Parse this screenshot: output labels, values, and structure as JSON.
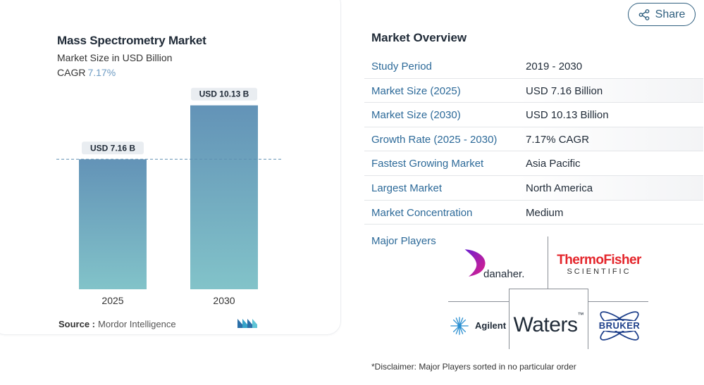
{
  "chart": {
    "title": "Mass Spectrometry Market",
    "subtitle": "Market Size in USD Billion",
    "cagr_label": "CAGR",
    "cagr_value": "7.17%",
    "source_label": "Source :",
    "source_value": "Mordor Intelligence",
    "logo_icon": "mordor-intelligence-logo-icon"
  },
  "chart_data": {
    "type": "bar",
    "categories": [
      "2025",
      "2030"
    ],
    "values": [
      7.16,
      10.13
    ],
    "data_labels": [
      "USD 7.16 B",
      "USD 10.13 B"
    ],
    "reference_line_value": 7.16,
    "ylim": [
      0,
      10.7
    ],
    "grid": false,
    "bar_gradient": [
      "#6393b7",
      "#82c3c9"
    ]
  },
  "share": {
    "label": "Share",
    "icon": "share-icon"
  },
  "overview": {
    "title": "Market Overview",
    "rows": [
      {
        "key": "Study Period",
        "value": "2019 - 2030"
      },
      {
        "key": "Market Size (2025)",
        "value": "USD 7.16 Billion"
      },
      {
        "key": "Market Size (2030)",
        "value": "USD 10.13 Billion"
      },
      {
        "key": "Growth Rate (2025 - 2030)",
        "value": "7.17% CAGR"
      },
      {
        "key": "Fastest Growing Market",
        "value": "Asia Pacific"
      },
      {
        "key": "Largest Market",
        "value": "North America"
      },
      {
        "key": "Market Concentration",
        "value": "Medium"
      }
    ],
    "major_players_label": "Major Players",
    "players": {
      "danaher": "danaher.",
      "thermo_top": "ThermoFisher",
      "thermo_bottom": "SCIENTIFIC",
      "agilent": "Agilent",
      "waters": "Waters",
      "bruker": "BRUKER"
    },
    "disclaimer": "*Disclaimer: Major Players sorted in no particular order"
  },
  "colors": {
    "accent_text": "#2d6a99",
    "cagr": "#6d9bc3",
    "thermo_red": "#e4262c",
    "danaher_purple": "#6a1fd0",
    "danaher_pink": "#e01f8a",
    "bruker_blue": "#1d3f8a"
  }
}
